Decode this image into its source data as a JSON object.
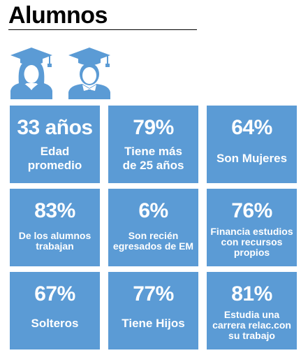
{
  "title": "Alumnos",
  "icons": [
    "female-graduate-icon",
    "male-graduate-icon"
  ],
  "colors": {
    "tile": "#5b9bd5",
    "icon": "#5b9bd5",
    "text": "#ffffff"
  },
  "stats": [
    {
      "value": "33 años",
      "label_lines": [
        "Edad",
        "promedio"
      ]
    },
    {
      "value": "79%",
      "label_lines": [
        "Tiene más",
        "de 25 años"
      ]
    },
    {
      "value": "64%",
      "label_lines": [
        "Son Mujeres"
      ]
    },
    {
      "value": "83%",
      "label_lines": [
        "De los alumnos",
        "trabajan"
      ]
    },
    {
      "value": "6%",
      "label_lines": [
        "Son recién",
        "egresados de EM"
      ]
    },
    {
      "value": "76%",
      "label_lines": [
        "Financia estudios",
        "con recursos",
        "propios"
      ]
    },
    {
      "value": "67%",
      "label_lines": [
        "Solteros"
      ]
    },
    {
      "value": "77%",
      "label_lines": [
        "Tiene Hijos"
      ]
    },
    {
      "value": "81%",
      "label_lines": [
        "Estudia una",
        "carrera relac.con",
        "su trabajo"
      ]
    }
  ]
}
